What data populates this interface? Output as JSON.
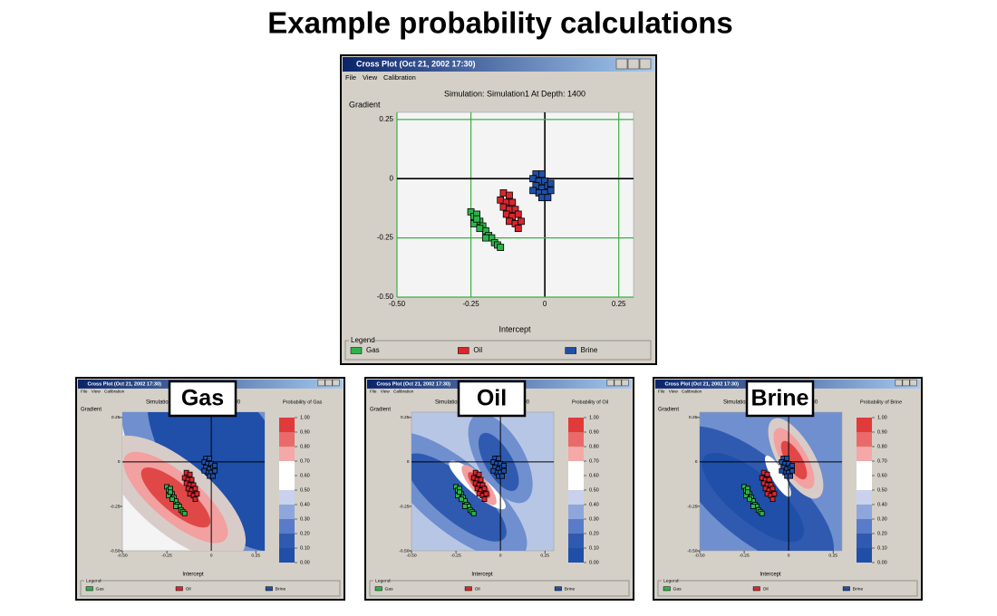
{
  "title": "Example probability calculations",
  "main": {
    "window_title": "Cross Plot  (Oct 21, 2002  17:30)",
    "menu": [
      "File",
      "View",
      "Calibration"
    ],
    "plot_title": "Simulation: Simulation1  At Depth: 1400",
    "y_label": "Gradient",
    "x_label": "Intercept",
    "xlim": [
      -0.5,
      0.3
    ],
    "ylim": [
      -0.5,
      0.28
    ],
    "xticks": [
      {
        "value": -0.5,
        "label": "-0.50"
      },
      -0.25,
      0,
      0.25
    ],
    "yticks": [
      0.25,
      0,
      -0.25,
      {
        "value": -0.5,
        "label": "-0.50"
      }
    ],
    "grid": true,
    "grid_color": "#3cb043",
    "legend_title": "Legend",
    "series": [
      {
        "name": "Gas",
        "color": "#2db34a",
        "x": [
          -0.25,
          -0.24,
          -0.23,
          -0.22,
          -0.24,
          -0.21,
          -0.2,
          -0.22,
          -0.19,
          -0.18,
          -0.2,
          -0.17,
          -0.16,
          -0.15,
          -0.23
        ],
        "y": [
          -0.14,
          -0.16,
          -0.15,
          -0.18,
          -0.19,
          -0.2,
          -0.22,
          -0.21,
          -0.24,
          -0.25,
          -0.25,
          -0.27,
          -0.28,
          -0.29,
          -0.17
        ]
      },
      {
        "name": "Oil",
        "color": "#d9272e",
        "x": [
          -0.14,
          -0.12,
          -0.15,
          -0.13,
          -0.11,
          -0.14,
          -0.12,
          -0.1,
          -0.13,
          -0.11,
          -0.09,
          -0.12,
          -0.1,
          -0.08,
          -0.09
        ],
        "y": [
          -0.06,
          -0.07,
          -0.09,
          -0.1,
          -0.1,
          -0.12,
          -0.13,
          -0.13,
          -0.15,
          -0.16,
          -0.15,
          -0.18,
          -0.19,
          -0.18,
          -0.21
        ]
      },
      {
        "name": "Brine",
        "color": "#1f4fa8",
        "x": [
          -0.03,
          -0.01,
          -0.04,
          -0.02,
          0,
          -0.03,
          -0.01,
          0.01,
          -0.02,
          0,
          0.02,
          -0.01,
          0.01,
          -0.04,
          0.02
        ],
        "y": [
          0.02,
          0.02,
          0,
          -0.01,
          -0.01,
          -0.03,
          -0.04,
          -0.03,
          -0.06,
          -0.06,
          -0.05,
          -0.08,
          -0.08,
          -0.05,
          -0.02
        ]
      }
    ]
  },
  "panels": [
    {
      "label": "Gas",
      "window_title": "Cross Plot  (Oct 21, 2002  17:30)",
      "menu": [
        "File",
        "View",
        "Calibration"
      ],
      "plot_title": "Simulation: Simulation1  At Depth: 1400",
      "y_label": "Gradient",
      "x_label": "Intercept",
      "xlim": [
        -0.5,
        0.3
      ],
      "ylim": [
        -0.5,
        0.28
      ],
      "xticks": [
        {
          "value": -0.5,
          "label": "-0.50"
        },
        -0.25,
        0,
        0.25
      ],
      "yticks": [
        0.25,
        0,
        -0.25,
        {
          "value": -0.5,
          "label": "-0.50"
        }
      ],
      "colorbar_title": "Probability of Gas",
      "colorbar_ticks": [
        {
          "value": 1,
          "label": "1.00"
        },
        {
          "value": 0.9,
          "label": "0.90"
        },
        {
          "value": 0.8,
          "label": "0.80"
        },
        {
          "value": 0.7,
          "label": "0.70"
        },
        {
          "value": 0.6,
          "label": "0.60"
        },
        {
          "value": 0.5,
          "label": "0.50"
        },
        {
          "value": 0.4,
          "label": "0.40"
        },
        {
          "value": 0.3,
          "label": "0.30"
        },
        {
          "value": 0.2,
          "label": "0.20"
        },
        {
          "value": 0.1,
          "label": "0.10"
        },
        {
          "value": 0,
          "label": "0.00"
        }
      ],
      "legend_title": "Legend",
      "legend": [
        "Gas",
        "Oil",
        "Brine"
      ]
    },
    {
      "label": "Oil",
      "window_title": "Cross Plot  (Oct 21, 2002  17:30)",
      "menu": [
        "File",
        "View",
        "Calibration"
      ],
      "plot_title": "Simulation: Simulation1  At Depth: 1400",
      "y_label": "Gradient",
      "x_label": "Intercept",
      "xlim": [
        -0.5,
        0.3
      ],
      "ylim": [
        -0.5,
        0.28
      ],
      "xticks": [
        {
          "value": -0.5,
          "label": "-0.50"
        },
        -0.25,
        0,
        0.25
      ],
      "yticks": [
        0.25,
        0,
        -0.25,
        {
          "value": -0.5,
          "label": "-0.50"
        }
      ],
      "colorbar_title": "Probability of Oil",
      "colorbar_ticks": [
        {
          "value": 1,
          "label": "1.00"
        },
        {
          "value": 0.9,
          "label": "0.90"
        },
        {
          "value": 0.8,
          "label": "0.80"
        },
        {
          "value": 0.7,
          "label": "0.70"
        },
        {
          "value": 0.6,
          "label": "0.60"
        },
        {
          "value": 0.5,
          "label": "0.50"
        },
        {
          "value": 0.4,
          "label": "0.40"
        },
        {
          "value": 0.3,
          "label": "0.30"
        },
        {
          "value": 0.2,
          "label": "0.20"
        },
        {
          "value": 0.1,
          "label": "0.10"
        },
        {
          "value": 0,
          "label": "0.00"
        }
      ],
      "legend_title": "Legend",
      "legend": [
        "Gas",
        "Oil",
        "Brine"
      ]
    },
    {
      "label": "Brine",
      "window_title": "Cross Plot  (Oct 21, 2002  17:30)",
      "menu": [
        "File",
        "View",
        "Calibration"
      ],
      "plot_title": "Simulation: Simulation1  At Depth: 1400",
      "y_label": "Gradient",
      "x_label": "Intercept",
      "xlim": [
        -0.5,
        0.3
      ],
      "ylim": [
        -0.5,
        0.28
      ],
      "xticks": [
        {
          "value": -0.5,
          "label": "-0.50"
        },
        -0.25,
        0,
        0.25
      ],
      "yticks": [
        0.25,
        0,
        -0.25,
        {
          "value": -0.5,
          "label": "-0.50"
        }
      ],
      "colorbar_title": "Probability of Brine",
      "colorbar_ticks": [
        {
          "value": 1,
          "label": "1.00"
        },
        {
          "value": 0.9,
          "label": "0.90"
        },
        {
          "value": 0.8,
          "label": "0.80"
        },
        {
          "value": 0.7,
          "label": "0.70"
        },
        {
          "value": 0.6,
          "label": "0.60"
        },
        {
          "value": 0.5,
          "label": "0.50"
        },
        {
          "value": 0.4,
          "label": "0.40"
        },
        {
          "value": 0.3,
          "label": "0.30"
        },
        {
          "value": 0.2,
          "label": "0.20"
        },
        {
          "value": 0.1,
          "label": "0.10"
        },
        {
          "value": 0,
          "label": "0.00"
        }
      ],
      "legend_title": "Legend",
      "legend": [
        "Gas",
        "Oil",
        "Brine"
      ]
    }
  ]
}
